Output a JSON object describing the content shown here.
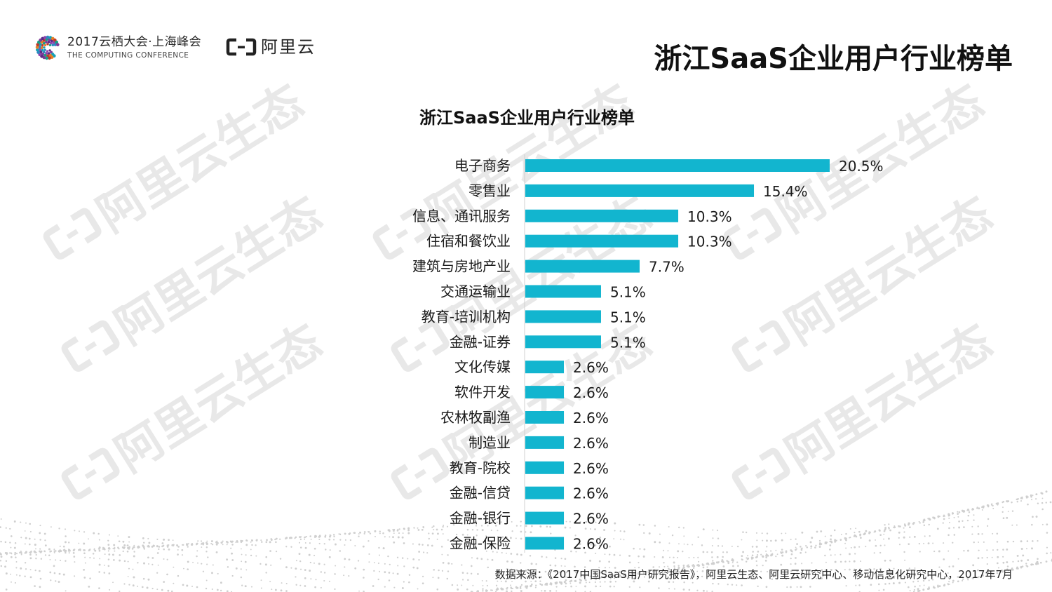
{
  "header": {
    "conference_cn": "2017云栖大会·上海峰会",
    "conference_en": "THE COMPUTING CONFERENCE",
    "brand": "阿里云",
    "title": "浙江SaaS企业用户行业榜单"
  },
  "watermark": {
    "text": "阿里云生态"
  },
  "colors": {
    "bar": "#12b5cf",
    "text": "#1a1a1a",
    "axis": "#d0d0d0",
    "watermark": "#e6e6e6"
  },
  "chart_data": {
    "type": "bar",
    "orientation": "horizontal",
    "title": "浙江SaaS企业用户行业榜单",
    "categories": [
      "电子商务",
      "零售业",
      "信息、通讯服务",
      "住宿和餐饮业",
      "建筑与房地产业",
      "交通运输业",
      "教育-培训机构",
      "金融-证券",
      "文化传媒",
      "软件开发",
      "农林牧副渔",
      "制造业",
      "教育-院校",
      "金融-信贷",
      "金融-银行",
      "金融-保险"
    ],
    "values": [
      20.5,
      15.4,
      10.3,
      10.3,
      7.7,
      5.1,
      5.1,
      5.1,
      2.6,
      2.6,
      2.6,
      2.6,
      2.6,
      2.6,
      2.6,
      2.6
    ],
    "value_labels": [
      "20.5%",
      "15.4%",
      "10.3%",
      "10.3%",
      "7.7%",
      "5.1%",
      "5.1%",
      "5.1%",
      "2.6%",
      "2.6%",
      "2.6%",
      "2.6%",
      "2.6%",
      "2.6%",
      "2.6%",
      "2.6%"
    ],
    "unit": "%",
    "xlim": [
      0,
      20.5
    ],
    "grid": false,
    "legend": "none"
  },
  "source": "数据来源：《2017中国SaaS用户研究报告》，阿里云生态、阿里云研究中心、移动信息化研究中心，2017年7月"
}
